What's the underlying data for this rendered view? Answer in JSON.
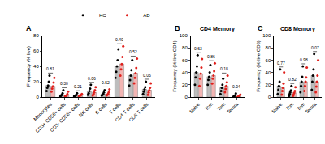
{
  "chart_data": [
    {
      "type": "bar",
      "label": "A",
      "ylabel": "Frequency (% live)",
      "categories": [
        "Monocytes",
        "CD3+ CD56+ cells",
        "CD3- CD56+ cells",
        "NK cells",
        "B cells",
        "T cells",
        "CD4 T cells",
        "CD8 T cells"
      ],
      "series": [
        {
          "name": "HC",
          "color": "#000000",
          "values": [
            15,
            3,
            2,
            8,
            4,
            40,
            28,
            10
          ],
          "points": [
            [
              8,
              12,
              15,
              20,
              28
            ],
            [
              1,
              2,
              3,
              5,
              9
            ],
            [
              1,
              1,
              2,
              3,
              5
            ],
            [
              3,
              5,
              8,
              11,
              16
            ],
            [
              2,
              3,
              4,
              6,
              9
            ],
            [
              25,
              33,
              40,
              48,
              62
            ],
            [
              15,
              22,
              28,
              35,
              48
            ],
            [
              4,
              7,
              10,
              13,
              20
            ]
          ]
        },
        {
          "name": "AD",
          "color": "#e0201c",
          "values": [
            14,
            2,
            2,
            6,
            4,
            43,
            31,
            9
          ],
          "points": [
            [
              7,
              11,
              14,
              19,
              25
            ],
            [
              1,
              1,
              2,
              4,
              7
            ],
            [
              1,
              2,
              2,
              3,
              4
            ],
            [
              2,
              4,
              6,
              9,
              13
            ],
            [
              2,
              3,
              4,
              6,
              10
            ],
            [
              28,
              36,
              43,
              52,
              66
            ],
            [
              18,
              25,
              31,
              38,
              50
            ],
            [
              3,
              6,
              9,
              12,
              18
            ]
          ]
        }
      ],
      "annotations": [
        "0.81",
        "0.30",
        "0.21",
        "0.06",
        "0.52",
        "0.40",
        "0.52",
        "0.06"
      ],
      "ylim": [
        0,
        80
      ],
      "yticks": [
        0,
        20,
        40,
        60,
        80
      ],
      "legend": "top right"
    },
    {
      "type": "bar",
      "label": "B",
      "title": "CD4 Memory",
      "ylabel": "Frequency (% live CD4)",
      "categories": [
        "Naive",
        "Tcm",
        "Tem",
        "Temra"
      ],
      "series": [
        {
          "name": "HC",
          "color": "#000000",
          "values": [
            40,
            33,
            15,
            2
          ],
          "points": [
            [
              20,
              32,
              40,
              50,
              68
            ],
            [
              20,
              28,
              33,
              40,
              52
            ],
            [
              5,
              10,
              15,
              20,
              30
            ],
            [
              0,
              1,
              2,
              3,
              6
            ]
          ]
        },
        {
          "name": "AD",
          "color": "#e0201c",
          "values": [
            38,
            35,
            18,
            1
          ],
          "points": [
            [
              18,
              30,
              38,
              48,
              62
            ],
            [
              22,
              30,
              35,
              42,
              55
            ],
            [
              8,
              13,
              18,
              24,
              35
            ],
            [
              0,
              1,
              1,
              2,
              4
            ]
          ]
        }
      ],
      "annotations": [
        "0.63",
        "0.86",
        "0.18",
        "0.04"
      ],
      "ylim": [
        0,
        100
      ],
      "yticks": [
        0,
        20,
        40,
        60,
        80,
        100
      ]
    },
    {
      "type": "bar",
      "label": "C",
      "title": "CD8 Memory",
      "ylabel": "Frequency (% live CD8)",
      "categories": [
        "Naive",
        "Tcm",
        "Tem",
        "Temra"
      ],
      "series": [
        {
          "name": "HC",
          "color": "#000000",
          "values": [
            18,
            8,
            25,
            35
          ],
          "points": [
            [
              5,
              12,
              18,
              25,
              45
            ],
            [
              2,
              5,
              8,
              11,
              18
            ],
            [
              8,
              18,
              25,
              33,
              50
            ],
            [
              12,
              25,
              35,
              45,
              70
            ]
          ]
        },
        {
          "name": "AD",
          "color": "#e0201c",
          "values": [
            15,
            7,
            25,
            25
          ],
          "points": [
            [
              4,
              10,
              15,
              22,
              40
            ],
            [
              2,
              4,
              7,
              10,
              16
            ],
            [
              10,
              18,
              25,
              32,
              48
            ],
            [
              8,
              17,
              25,
              35,
              60
            ]
          ]
        }
      ],
      "annotations": [
        "0.77",
        "0.82",
        "0.98",
        "0.07"
      ],
      "ylim": [
        0,
        100
      ],
      "yticks": [
        0,
        20,
        40,
        60,
        80,
        100
      ]
    }
  ]
}
